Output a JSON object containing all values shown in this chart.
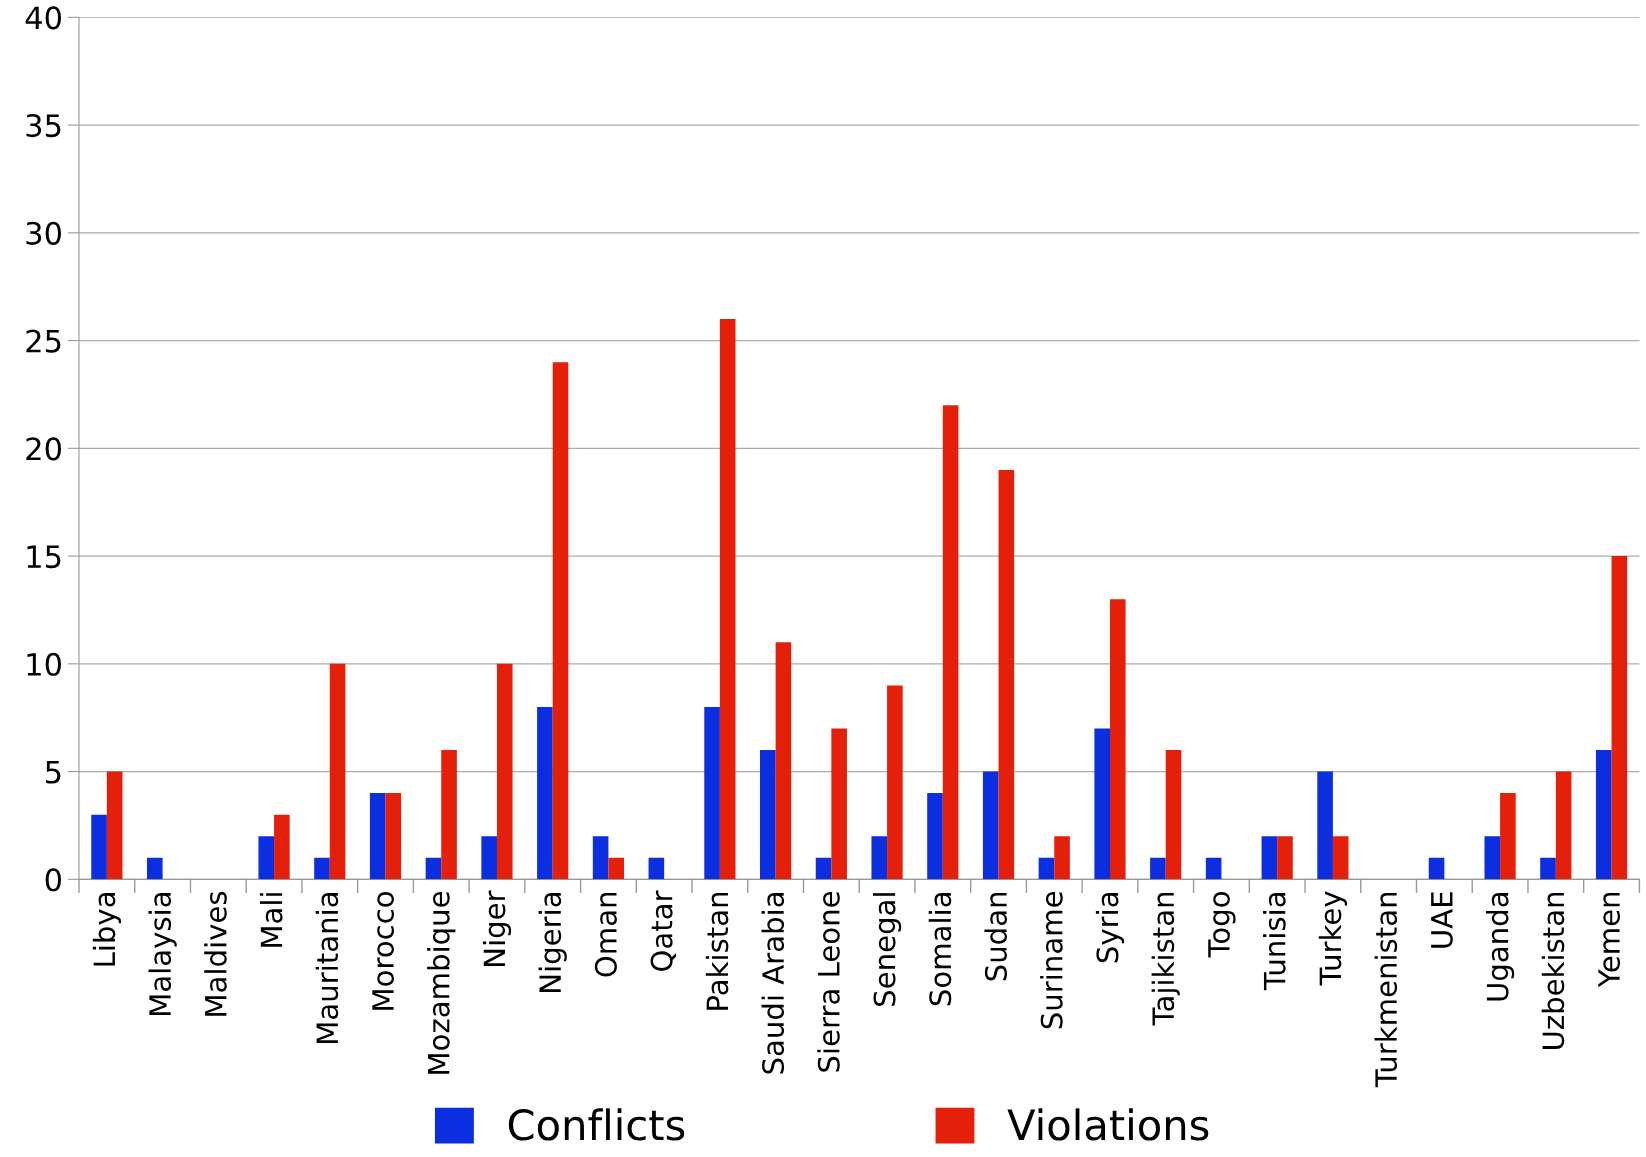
{
  "chart_data": {
    "type": "bar",
    "categories": [
      "Libya",
      "Malaysia",
      "Maldives",
      "Mali",
      "Mauritania",
      "Morocco",
      "Mozambique",
      "Niger",
      "Nigeria",
      "Oman",
      "Qatar",
      "Pakistan",
      "Saudi Arabia",
      "Sierra Leone",
      "Senegal",
      "Somalia",
      "Sudan",
      "Suriname",
      "Syria",
      "Tajikistan",
      "Togo",
      "Tunisia",
      "Turkey",
      "Turkmenistan",
      "UAE",
      "Uganda",
      "Uzbekistan",
      "Yemen"
    ],
    "series": [
      {
        "name": "Conflicts",
        "color": "#0a2ee0",
        "values": [
          3,
          1,
          0,
          2,
          1,
          4,
          1,
          2,
          8,
          2,
          1,
          8,
          6,
          1,
          2,
          4,
          5,
          1,
          7,
          1,
          1,
          2,
          5,
          0,
          1,
          2,
          1,
          6
        ]
      },
      {
        "name": "Violations",
        "color": "#e5200a",
        "values": [
          5,
          0,
          0,
          3,
          10,
          4,
          6,
          10,
          24,
          1,
          0,
          26,
          11,
          7,
          9,
          22,
          19,
          2,
          13,
          6,
          0,
          2,
          2,
          0,
          0,
          4,
          5,
          15
        ]
      }
    ],
    "ylim": [
      0,
      40
    ],
    "yticks": [
      0,
      5,
      10,
      15,
      20,
      25,
      30,
      35,
      40
    ],
    "grid": "y",
    "legend": "bottom"
  }
}
